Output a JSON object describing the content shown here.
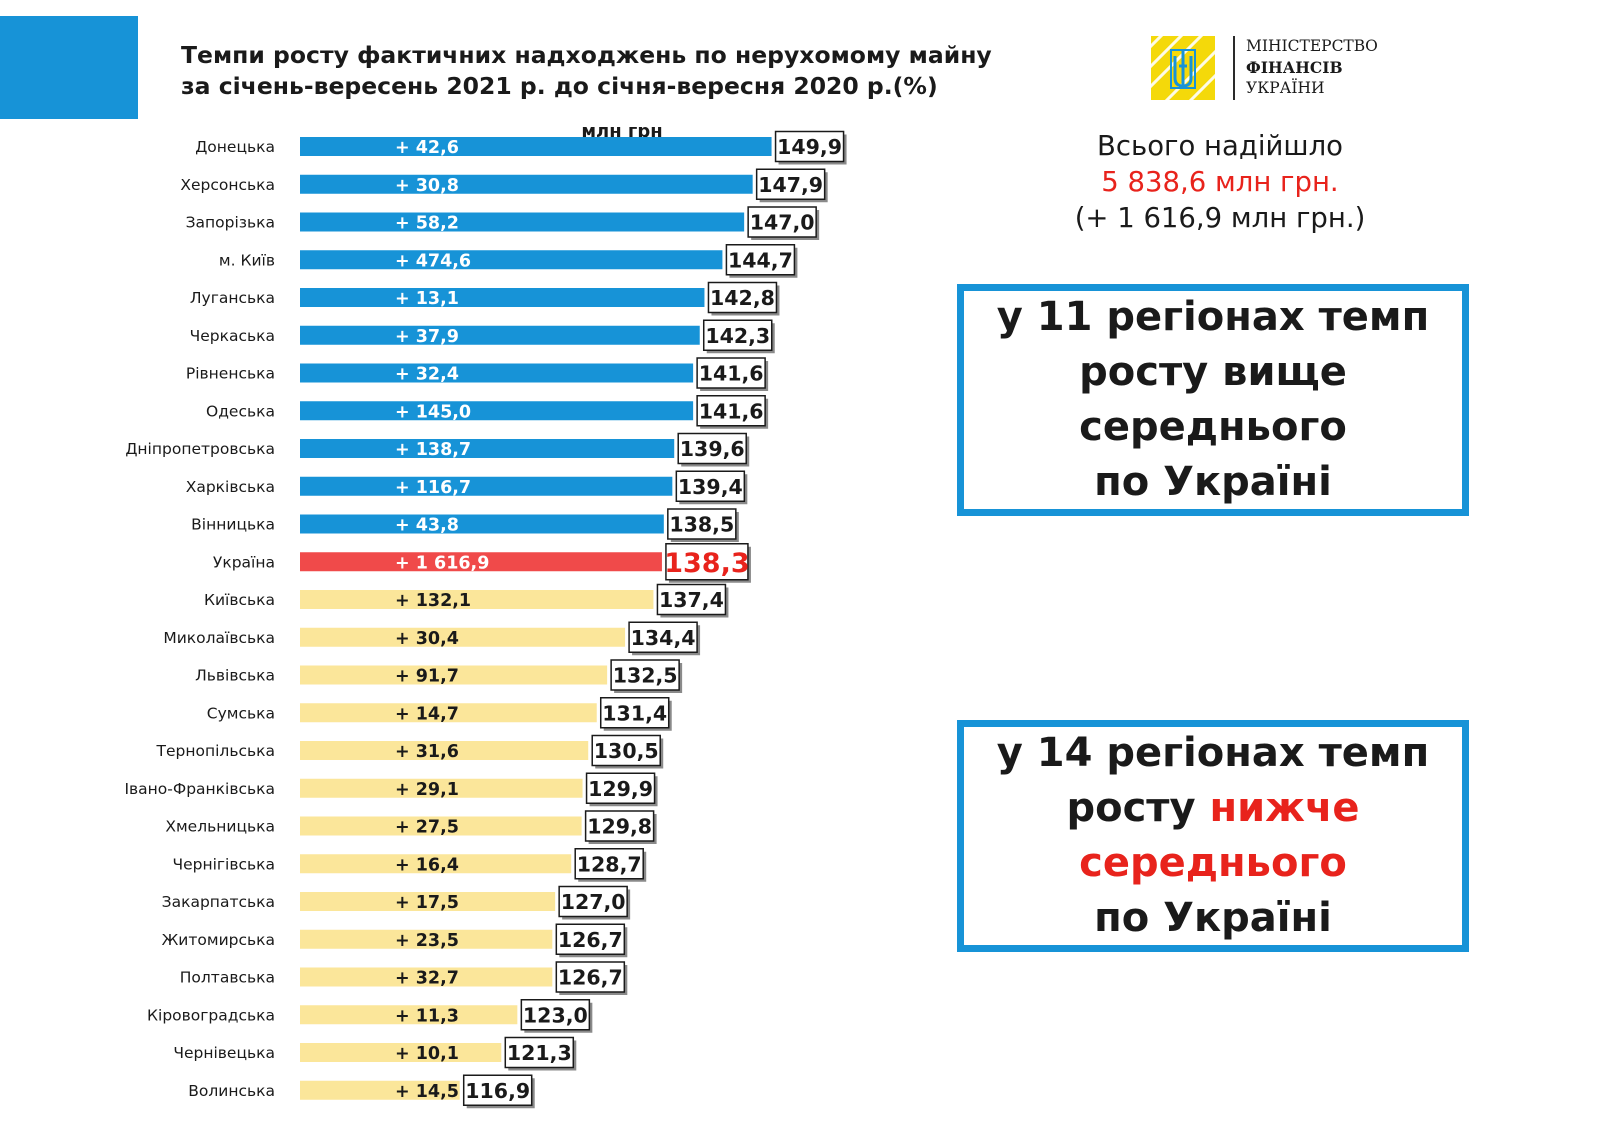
{
  "header": {
    "title_line1": "Темпи росту фактичних надходжень по нерухомому майну",
    "title_line2": "за січень-вересень 2021 р. до січня-вересня 2020 р.(%)",
    "accent_color": "#1793d7"
  },
  "logo": {
    "line1": "МІНІСТЕРСТВО",
    "line2": "ФІНАНСІВ",
    "line3": "УКРАЇНИ",
    "icon": "trident-emblem-icon",
    "color": "#f4d90a"
  },
  "summary": {
    "line1": "Всього надійшло",
    "amount": "5 838,6 млн грн.",
    "line3": "(+ 1 616,9 млн грн.)"
  },
  "box_above": {
    "line1": "у 11 регіонах темп",
    "line2": "росту вище",
    "line3": "середнього",
    "line4": "по  Україні"
  },
  "box_below": {
    "line1": "у 14 регіонах темп",
    "line2a": "росту ",
    "line2b": "нижче",
    "line3": "середнього",
    "line4": "по  Україні"
  },
  "chart_data": {
    "type": "bar",
    "orientation": "horizontal",
    "unit_label": "млн грн",
    "categories": [
      "Донецька",
      "Херсонська",
      "Запорізька",
      "м. Київ",
      "Луганська",
      "Черкаська",
      "Рівненська",
      "Одеська",
      "Дніпропетровська",
      "Харківська",
      "Вінницька",
      "Україна",
      "Київська",
      "Миколаївська",
      "Львівська",
      "Сумська",
      "Тернопільська",
      "Івано-Франківська",
      "Хмельницька",
      "Чернігівська",
      "Закарпатська",
      "Житомирська",
      "Полтавська",
      "Кіровоградська",
      "Чернівецька",
      "Волинська"
    ],
    "values": [
      149.9,
      147.9,
      147.0,
      144.7,
      142.8,
      142.3,
      141.6,
      141.6,
      139.6,
      139.4,
      138.5,
      138.3,
      137.4,
      134.4,
      132.5,
      131.4,
      130.5,
      129.9,
      129.8,
      128.7,
      127.0,
      126.7,
      126.7,
      123.0,
      121.3,
      116.9
    ],
    "value_labels": [
      "149,9",
      "147,9",
      "147,0",
      "144,7",
      "142,8",
      "142,3",
      "141,6",
      "141,6",
      "139,6",
      "139,4",
      "138,5",
      "138,3",
      "137,4",
      "134,4",
      "132,5",
      "131,4",
      "130,5",
      "129,9",
      "129,8",
      "128,7",
      "127,0",
      "126,7",
      "126,7",
      "123,0",
      "121,3",
      "116,9"
    ],
    "increase_labels": [
      "+ 42,6",
      "+ 30,8",
      "+ 58,2",
      "+ 474,6",
      "+ 13,1",
      "+ 37,9",
      "+ 32,4",
      "+ 145,0",
      "+ 138,7",
      "+ 116,7",
      "+ 43,8",
      "+ 1 616,9",
      "+ 132,1",
      "+ 30,4",
      "+ 91,7",
      "+ 14,7",
      "+ 31,6",
      "+ 29,1",
      "+ 27,5",
      "+ 16,4",
      "+ 17,5",
      "+ 23,5",
      "+ 32,7",
      "+ 11,3",
      "+ 10,1",
      "+ 14,5"
    ],
    "groups": [
      "above",
      "above",
      "above",
      "above",
      "above",
      "above",
      "above",
      "above",
      "above",
      "above",
      "above",
      "average",
      "below",
      "below",
      "below",
      "below",
      "below",
      "below",
      "below",
      "below",
      "below",
      "below",
      "below",
      "below",
      "below",
      "below"
    ],
    "colors": {
      "above": "#1793d7",
      "average": "#f04a4a",
      "below": "#fbe69a",
      "average_label": "#e8231c"
    }
  }
}
